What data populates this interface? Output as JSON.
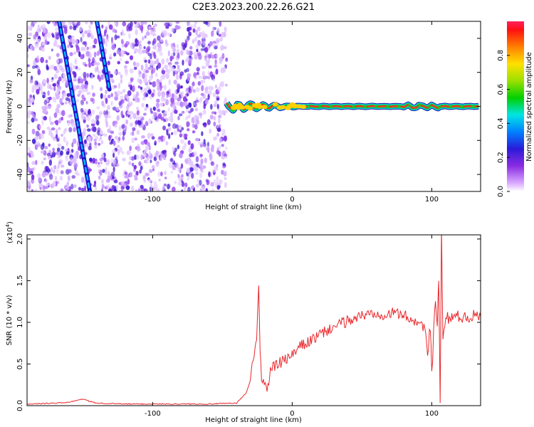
{
  "title": "C2E3.2023.200.22.26.G21",
  "chart_data": [
    {
      "type": "heatmap",
      "xlabel": "Height of straight line (km)",
      "ylabel": "Frequency (Hz)",
      "xlim": [
        -190,
        135
      ],
      "ylim": [
        -50,
        50
      ],
      "x_ticks": [
        -100,
        0,
        100
      ],
      "x_tick_labels": [
        "-100",
        "0",
        "100"
      ],
      "y_ticks": [
        -40,
        -20,
        0,
        20,
        40
      ],
      "y_tick_labels": [
        "-40",
        "-20",
        "0",
        "20",
        "40"
      ],
      "colorbar": {
        "label": "Normalized spectral amplitude",
        "range": [
          0,
          1
        ],
        "ticks": [
          0.0,
          0.2,
          0.4,
          0.6,
          0.8
        ],
        "tick_labels": [
          "0.0",
          "0.2",
          "0.4",
          "0.6",
          "0.8"
        ]
      },
      "features": {
        "noise_region_x": [
          -190,
          -47
        ],
        "carrier_line": {
          "x_start": -47,
          "x_end": 135,
          "frequency": 0
        },
        "diagonal_streaks": [
          {
            "x": [
              -167,
              -145
            ],
            "y": [
              50,
              -50
            ]
          },
          {
            "x": [
              -140,
              -131
            ],
            "y": [
              50,
              10
            ]
          }
        ]
      }
    },
    {
      "type": "line",
      "xlabel": "Height of straight line (km)",
      "ylabel": "SNR (10 * v/v)",
      "y_multiplier": "(x10",
      "y_multiplier_exp": "4",
      "y_multiplier_close": ")",
      "xlim": [
        -190,
        135
      ],
      "ylim": [
        0,
        2.05
      ],
      "x_ticks": [
        -100,
        0,
        100
      ],
      "x_tick_labels": [
        "-100",
        "0",
        "100"
      ],
      "y_ticks": [
        0,
        0.5,
        1.0,
        1.5,
        2.0
      ],
      "y_tick_labels": [
        "0.0",
        "0.5",
        "1.0",
        "1.5",
        "2.0"
      ],
      "series": [
        {
          "color": "#e8272b",
          "x": [
            -190,
            -170,
            -160,
            -150,
            -145,
            -140,
            -120,
            -100,
            -80,
            -60,
            -40,
            -33,
            -30,
            -28,
            -26,
            -25,
            -24,
            -23,
            -22,
            -20,
            -18,
            -15,
            -10,
            -5,
            0,
            5,
            10,
            15,
            20,
            25,
            30,
            35,
            40,
            45,
            50,
            55,
            60,
            65,
            70,
            75,
            80,
            85,
            90,
            95,
            97,
            99,
            100,
            102,
            104,
            105,
            106,
            107,
            108,
            110,
            112,
            115,
            120,
            125,
            130,
            135
          ],
          "y": [
            0.02,
            0.03,
            0.04,
            0.08,
            0.05,
            0.03,
            0.02,
            0.02,
            0.02,
            0.02,
            0.03,
            0.15,
            0.3,
            0.55,
            0.7,
            1.0,
            1.45,
            0.7,
            0.35,
            0.25,
            0.2,
            0.45,
            0.5,
            0.55,
            0.6,
            0.7,
            0.75,
            0.8,
            0.85,
            0.9,
            0.95,
            0.98,
            1.02,
            1.05,
            1.08,
            1.1,
            1.12,
            1.1,
            1.1,
            1.12,
            1.08,
            1.05,
            1.0,
            0.95,
            0.6,
            0.9,
            0.35,
            1.2,
            1.0,
            1.5,
            0.1,
            2.05,
            0.9,
            1.1,
            1.05,
            1.08,
            1.07,
            1.06,
            1.08,
            1.07
          ]
        }
      ]
    }
  ]
}
